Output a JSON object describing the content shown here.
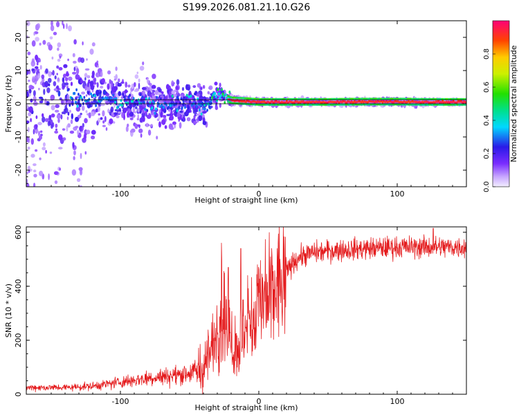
{
  "figure_title": "S199.2026.081.21.10.G26",
  "colors": {
    "snr_line": "#e41a1c",
    "reference_line": "#000000",
    "low_amplitude": "#e8dcff",
    "high_amplitude": "#ff0066"
  },
  "chart_data": [
    {
      "type": "heatmap",
      "title": "S199.2026.081.21.10.G26",
      "xlabel": "Height of straight line (km)",
      "ylabel": "Frequency (Hz)",
      "xlim": [
        -168,
        150
      ],
      "ylim": [
        -25,
        25
      ],
      "x_ticks": [
        "-100",
        "0",
        "100"
      ],
      "y_ticks": [
        "20",
        "10",
        "0",
        "-10",
        "-20"
      ],
      "reference_band_hz": [
        0,
        1.2
      ],
      "ridge": {
        "description_points_x_km": [
          -130,
          -110,
          -90,
          -70,
          -50,
          -38,
          -30,
          -20,
          0,
          20,
          50,
          80,
          100,
          120,
          150
        ],
        "center_frequency_hz": [
          2.0,
          1.5,
          0.5,
          -0.5,
          0.5,
          -1.0,
          3.0,
          1.0,
          0.5,
          0.5,
          0.5,
          0.6,
          0.6,
          0.5,
          0.5
        ],
        "spread_hz": [
          14,
          8,
          8,
          7,
          6,
          5,
          3,
          1.2,
          0.8,
          0.8,
          0.8,
          0.8,
          0.8,
          0.8,
          0.6
        ]
      },
      "colorbar": {
        "label": "Normalized spectral amplitude",
        "ticks": [
          "0.0",
          "0.2",
          "0.4",
          "0.6",
          "0.8"
        ],
        "range": [
          0,
          1
        ]
      }
    },
    {
      "type": "line",
      "xlabel": "Height of straight line (km)",
      "ylabel": "SNR (10 * v/v)",
      "xlim": [
        -168,
        150
      ],
      "ylim": [
        0,
        620
      ],
      "x_ticks": [
        "-100",
        "0",
        "100"
      ],
      "y_ticks": [
        "600",
        "400",
        "200",
        "0"
      ],
      "series": [
        {
          "name": "SNR",
          "envelope_x_km": [
            -168,
            -140,
            -120,
            -100,
            -80,
            -60,
            -45,
            -40,
            -35,
            -30,
            -25,
            -20,
            -15,
            -10,
            -5,
            0,
            5,
            10,
            15,
            20,
            25,
            30,
            40,
            50,
            60,
            80,
            100,
            120,
            140,
            150
          ],
          "envelope_mean": [
            25,
            25,
            30,
            45,
            60,
            70,
            85,
            100,
            150,
            250,
            300,
            180,
            180,
            220,
            270,
            300,
            330,
            370,
            410,
            450,
            490,
            510,
            525,
            530,
            535,
            540,
            545,
            545,
            545,
            545
          ],
          "spikes": [
            {
              "x_km": -27,
              "y": 560
            },
            {
              "x_km": -22,
              "y": 470
            },
            {
              "x_km": -13,
              "y": 540
            },
            {
              "x_km": -8,
              "y": 440
            },
            {
              "x_km": 14,
              "y": 560
            },
            {
              "x_km": 126,
              "y": 615
            }
          ]
        }
      ]
    }
  ]
}
